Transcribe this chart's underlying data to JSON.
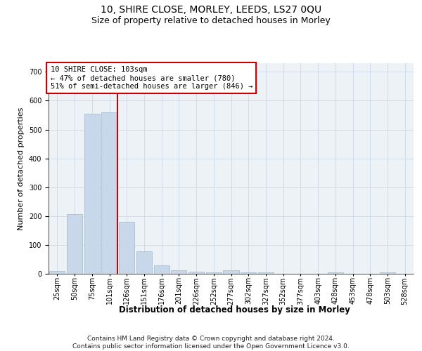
{
  "title": "10, SHIRE CLOSE, MORLEY, LEEDS, LS27 0QU",
  "subtitle": "Size of property relative to detached houses in Morley",
  "xlabel": "Distribution of detached houses by size in Morley",
  "ylabel": "Number of detached properties",
  "bar_color": "#c8d8ea",
  "bar_edge_color": "#a0b8cc",
  "grid_color": "#d0dce8",
  "background_color": "#edf2f7",
  "annotation_box_color": "#cc0000",
  "vline_color": "#cc0000",
  "categories": [
    "25sqm",
    "50sqm",
    "75sqm",
    "101sqm",
    "126sqm",
    "151sqm",
    "176sqm",
    "201sqm",
    "226sqm",
    "252sqm",
    "277sqm",
    "302sqm",
    "327sqm",
    "352sqm",
    "377sqm",
    "403sqm",
    "428sqm",
    "453sqm",
    "478sqm",
    "503sqm",
    "528sqm"
  ],
  "values": [
    10,
    207,
    554,
    560,
    180,
    78,
    30,
    12,
    7,
    5,
    12,
    6,
    5,
    0,
    0,
    0,
    5,
    0,
    0,
    5,
    0
  ],
  "ylim": [
    0,
    730
  ],
  "yticks": [
    0,
    100,
    200,
    300,
    400,
    500,
    600,
    700
  ],
  "property_label": "10 SHIRE CLOSE: 103sqm",
  "annotation_line1": "← 47% of detached houses are smaller (780)",
  "annotation_line2": "51% of semi-detached houses are larger (846) →",
  "vline_x_index": 3,
  "footer_line1": "Contains HM Land Registry data © Crown copyright and database right 2024.",
  "footer_line2": "Contains public sector information licensed under the Open Government Licence v3.0.",
  "title_fontsize": 10,
  "subtitle_fontsize": 9,
  "xlabel_fontsize": 8.5,
  "ylabel_fontsize": 8,
  "tick_fontsize": 7,
  "annotation_fontsize": 7.5,
  "footer_fontsize": 6.5
}
